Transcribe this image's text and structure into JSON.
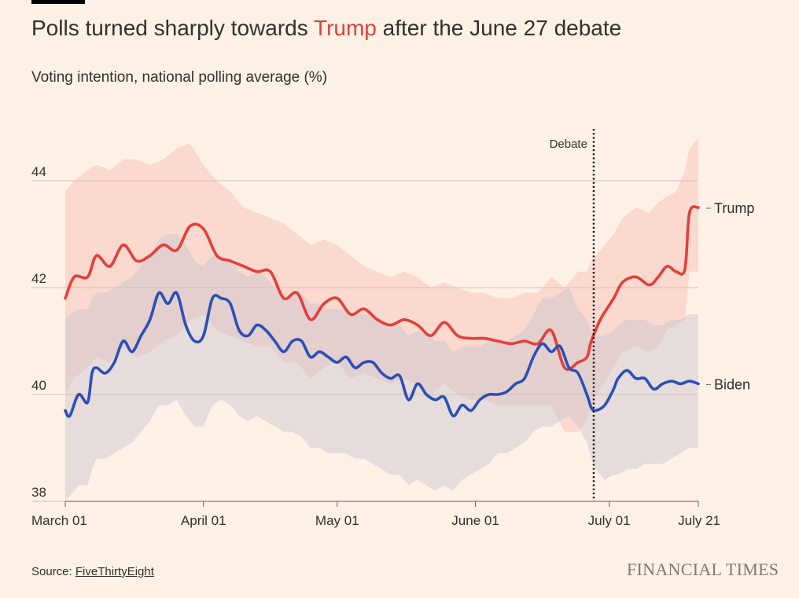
{
  "header": {
    "title_before": "Polls turned sharply towards ",
    "title_highlight": "Trump",
    "title_after": " after the June 27 debate",
    "subtitle": "Voting intention, national polling average (%)"
  },
  "colors": {
    "background": "#fff1e5",
    "trump": "#e3403a",
    "trump_band": "#fad5cb",
    "biden": "#2c4fb6",
    "biden_band": "#c8c4ce",
    "grid": "#cbc3bb"
  },
  "chart_data": {
    "type": "line",
    "title": "Polls turned sharply towards Trump after the June 27 debate",
    "ylabel": "Voting intention, national polling average (%)",
    "xlabel": "",
    "ylim": [
      38,
      45
    ],
    "y_ticks": [
      {
        "value": 38,
        "label": "38"
      },
      {
        "value": 40,
        "label": "40"
      },
      {
        "value": 42,
        "label": "42"
      },
      {
        "value": 44,
        "label": "44"
      }
    ],
    "x_range_days": [
      0,
      142
    ],
    "x_ticks": [
      {
        "day": 0,
        "label": "March 01"
      },
      {
        "day": 31,
        "label": "April 01"
      },
      {
        "day": 61,
        "label": "May 01"
      },
      {
        "day": 92,
        "label": "June 01"
      },
      {
        "day": 122,
        "label": "July 01"
      },
      {
        "day": 142,
        "label": "July 21"
      }
    ],
    "annotation": {
      "label": "Debate",
      "day": 118
    },
    "series": [
      {
        "name": "Trump",
        "label": "Trump",
        "x": [
          0,
          2,
          5,
          7,
          10,
          13,
          16,
          19,
          22,
          25,
          28,
          31,
          34,
          37,
          40,
          43,
          46,
          49,
          52,
          55,
          58,
          61,
          64,
          67,
          70,
          73,
          76,
          79,
          82,
          85,
          88,
          91,
          94,
          97,
          100,
          103,
          106,
          109,
          112,
          115,
          117,
          118,
          120,
          123,
          125,
          128,
          131,
          133,
          135,
          137,
          139,
          140,
          142
        ],
        "values": [
          41.8,
          42.2,
          42.2,
          42.6,
          42.4,
          42.8,
          42.5,
          42.6,
          42.8,
          42.7,
          43.15,
          43.1,
          42.6,
          42.5,
          42.4,
          42.3,
          42.3,
          41.8,
          41.9,
          41.4,
          41.7,
          41.8,
          41.5,
          41.6,
          41.4,
          41.3,
          41.4,
          41.3,
          41.1,
          41.35,
          41.1,
          41.05,
          41.05,
          41.0,
          40.95,
          41.0,
          40.95,
          41.2,
          40.5,
          40.6,
          40.7,
          41.0,
          41.4,
          41.8,
          42.1,
          42.2,
          42.05,
          42.2,
          42.4,
          42.3,
          42.35,
          43.4,
          43.5
        ],
        "band_upper": [
          43.8,
          44.0,
          44.2,
          44.3,
          44.2,
          44.4,
          44.4,
          44.3,
          44.4,
          44.6,
          44.7,
          44.3,
          44.0,
          43.8,
          43.5,
          43.4,
          43.3,
          43.2,
          43.0,
          42.8,
          42.9,
          42.8,
          42.6,
          42.4,
          42.3,
          42.2,
          42.3,
          42.2,
          42.0,
          42.1,
          42.0,
          41.9,
          41.9,
          41.8,
          41.8,
          41.9,
          41.9,
          42.2,
          42.0,
          42.3,
          42.3,
          42.5,
          42.7,
          43.0,
          43.3,
          43.5,
          43.4,
          43.6,
          43.7,
          43.8,
          44.2,
          44.6,
          44.8
        ],
        "band_lower": [
          40.0,
          40.3,
          40.5,
          40.7,
          40.6,
          40.9,
          40.7,
          40.8,
          41.0,
          41.1,
          41.4,
          41.5,
          41.2,
          41.1,
          41.0,
          40.9,
          40.9,
          40.6,
          40.6,
          40.3,
          40.5,
          40.6,
          40.3,
          40.4,
          40.3,
          40.2,
          40.3,
          40.2,
          40.0,
          40.2,
          40.0,
          39.9,
          39.9,
          39.8,
          39.8,
          39.8,
          39.8,
          39.8,
          39.3,
          39.3,
          39.5,
          39.8,
          40.1,
          40.5,
          40.8,
          40.9,
          40.8,
          40.9,
          41.2,
          41.3,
          41.4,
          42.3,
          42.3
        ]
      },
      {
        "name": "Biden",
        "label": "Biden",
        "x": [
          0,
          1,
          3,
          5,
          6,
          7,
          9,
          11,
          13,
          15,
          17,
          19,
          21,
          23,
          25,
          27,
          29,
          31,
          33,
          35,
          37,
          39,
          41,
          43,
          45,
          47,
          49,
          51,
          53,
          55,
          57,
          59,
          61,
          63,
          65,
          67,
          69,
          71,
          73,
          75,
          77,
          79,
          81,
          83,
          85,
          87,
          89,
          91,
          93,
          95,
          97,
          99,
          101,
          103,
          105,
          107,
          109,
          111,
          113,
          115,
          117,
          118,
          119,
          121,
          123,
          124,
          126,
          128,
          130,
          132,
          134,
          136,
          138,
          140,
          142
        ],
        "values": [
          39.7,
          39.6,
          40.0,
          39.85,
          40.4,
          40.5,
          40.4,
          40.6,
          41.0,
          40.8,
          41.1,
          41.4,
          41.9,
          41.7,
          41.9,
          41.3,
          41.0,
          41.1,
          41.8,
          41.8,
          41.7,
          41.2,
          41.1,
          41.3,
          41.2,
          41.0,
          40.8,
          41.0,
          41.0,
          40.7,
          40.8,
          40.7,
          40.6,
          40.7,
          40.5,
          40.6,
          40.6,
          40.4,
          40.3,
          40.35,
          39.9,
          40.2,
          40.0,
          39.9,
          39.95,
          39.6,
          39.8,
          39.7,
          39.9,
          40.0,
          40.0,
          40.05,
          40.2,
          40.3,
          40.7,
          40.95,
          40.8,
          40.9,
          40.5,
          40.4,
          40.0,
          39.75,
          39.7,
          39.8,
          40.1,
          40.3,
          40.45,
          40.3,
          40.3,
          40.1,
          40.2,
          40.25,
          40.2,
          40.25,
          40.2
        ],
        "band_upper": [
          41.4,
          41.5,
          41.6,
          41.6,
          41.8,
          41.9,
          41.9,
          42.0,
          42.1,
          42.2,
          42.4,
          42.6,
          42.9,
          43.0,
          43.0,
          42.8,
          42.5,
          42.4,
          42.6,
          42.6,
          42.5,
          42.3,
          42.2,
          42.3,
          42.2,
          42.0,
          41.8,
          41.9,
          41.9,
          41.7,
          41.7,
          41.6,
          41.6,
          41.6,
          41.5,
          41.5,
          41.5,
          41.4,
          41.3,
          41.3,
          41.1,
          41.2,
          41.1,
          41.0,
          41.0,
          40.8,
          40.9,
          40.9,
          40.9,
          41.0,
          41.0,
          41.0,
          41.1,
          41.2,
          41.5,
          41.8,
          41.8,
          41.9,
          42.0,
          41.6,
          41.4,
          41.2,
          41.1,
          41.1,
          41.2,
          41.3,
          41.4,
          41.4,
          41.4,
          41.3,
          41.3,
          41.4,
          41.4,
          41.5,
          41.5
        ],
        "band_lower": [
          38.0,
          38.1,
          38.3,
          38.3,
          38.6,
          38.8,
          38.8,
          38.9,
          39.0,
          39.1,
          39.3,
          39.5,
          39.8,
          39.8,
          39.9,
          39.6,
          39.4,
          39.4,
          39.8,
          39.9,
          39.8,
          39.6,
          39.5,
          39.6,
          39.5,
          39.4,
          39.3,
          39.3,
          39.2,
          39.0,
          39.0,
          38.9,
          38.9,
          38.9,
          38.8,
          38.8,
          38.7,
          38.6,
          38.5,
          38.5,
          38.3,
          38.4,
          38.3,
          38.2,
          38.3,
          38.2,
          38.4,
          38.5,
          38.6,
          38.7,
          38.9,
          38.9,
          39.0,
          39.1,
          39.3,
          39.4,
          39.4,
          39.5,
          39.6,
          39.4,
          39.1,
          38.8,
          38.6,
          38.4,
          38.5,
          38.5,
          38.6,
          38.6,
          38.7,
          38.7,
          38.7,
          38.8,
          38.9,
          39.0,
          39.0
        ]
      }
    ]
  },
  "footer": {
    "source_prefix": "Source: ",
    "source_link": "FiveThirtyEight",
    "brand": "FINANCIAL TIMES"
  }
}
